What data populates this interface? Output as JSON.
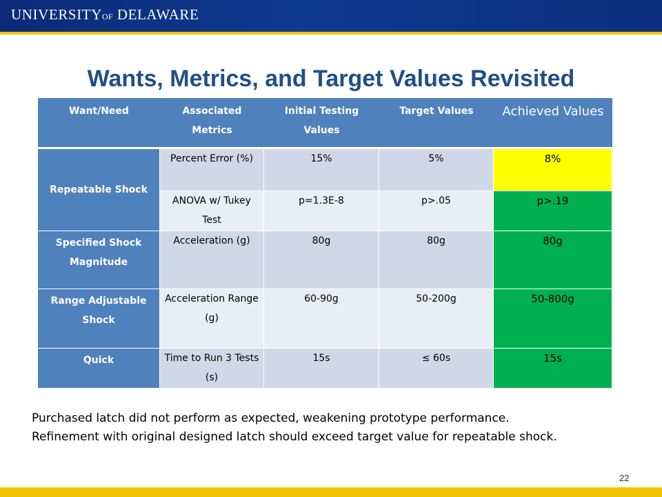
{
  "header": {
    "logo_line1": "UNIVERSITY",
    "logo_of": "OF",
    "logo_line2": "DELAWARE"
  },
  "slide": {
    "title": "Wants, Metrics, and Target Values Revisited",
    "page_number": "22"
  },
  "table": {
    "headers": {
      "want": "Want/Need",
      "metrics": "Associated Metrics",
      "initial": "Initial Testing Values",
      "target": "Target Values",
      "achieved": "Achieved Values"
    },
    "rows": [
      {
        "want": "Repeatable Shock",
        "metric": "Percent Error (%)",
        "initial": "15%",
        "target": "5%",
        "achieved": "8%"
      },
      {
        "want": "",
        "metric": "ANOVA w/ Tukey Test",
        "initial": "p=1.3E-8",
        "target": "p>.05",
        "achieved": "p>.19"
      },
      {
        "want": "Specified Shock Magnitude",
        "metric": "Acceleration (g)",
        "initial": "80g",
        "target": "80g",
        "achieved": "80g"
      },
      {
        "want": "Range Adjustable Shock",
        "metric": "Acceleration Range (g)",
        "initial": "60-90g",
        "target": "50-200g",
        "achieved": "50-800g"
      },
      {
        "want": "Quick",
        "metric": "Time to Run 3 Tests (s)",
        "initial": "15s",
        "target": "≤ 60s",
        "achieved": "15s"
      }
    ]
  },
  "caption": {
    "line1": "Purchased latch did not perform as expected, weakening prototype performance.",
    "line2": "Refinement with original designed latch should exceed target value for repeatable shock."
  },
  "colors": {
    "brand_blue": "#0b2a78",
    "brand_gold": "#f2c500",
    "title_blue": "#1f4f87",
    "header_blue": "#4f81bd",
    "cell_dark": "#d0d8e8",
    "cell_light": "#e9edf4",
    "status_yellow": "#ffff00",
    "status_green": "#00b050"
  }
}
